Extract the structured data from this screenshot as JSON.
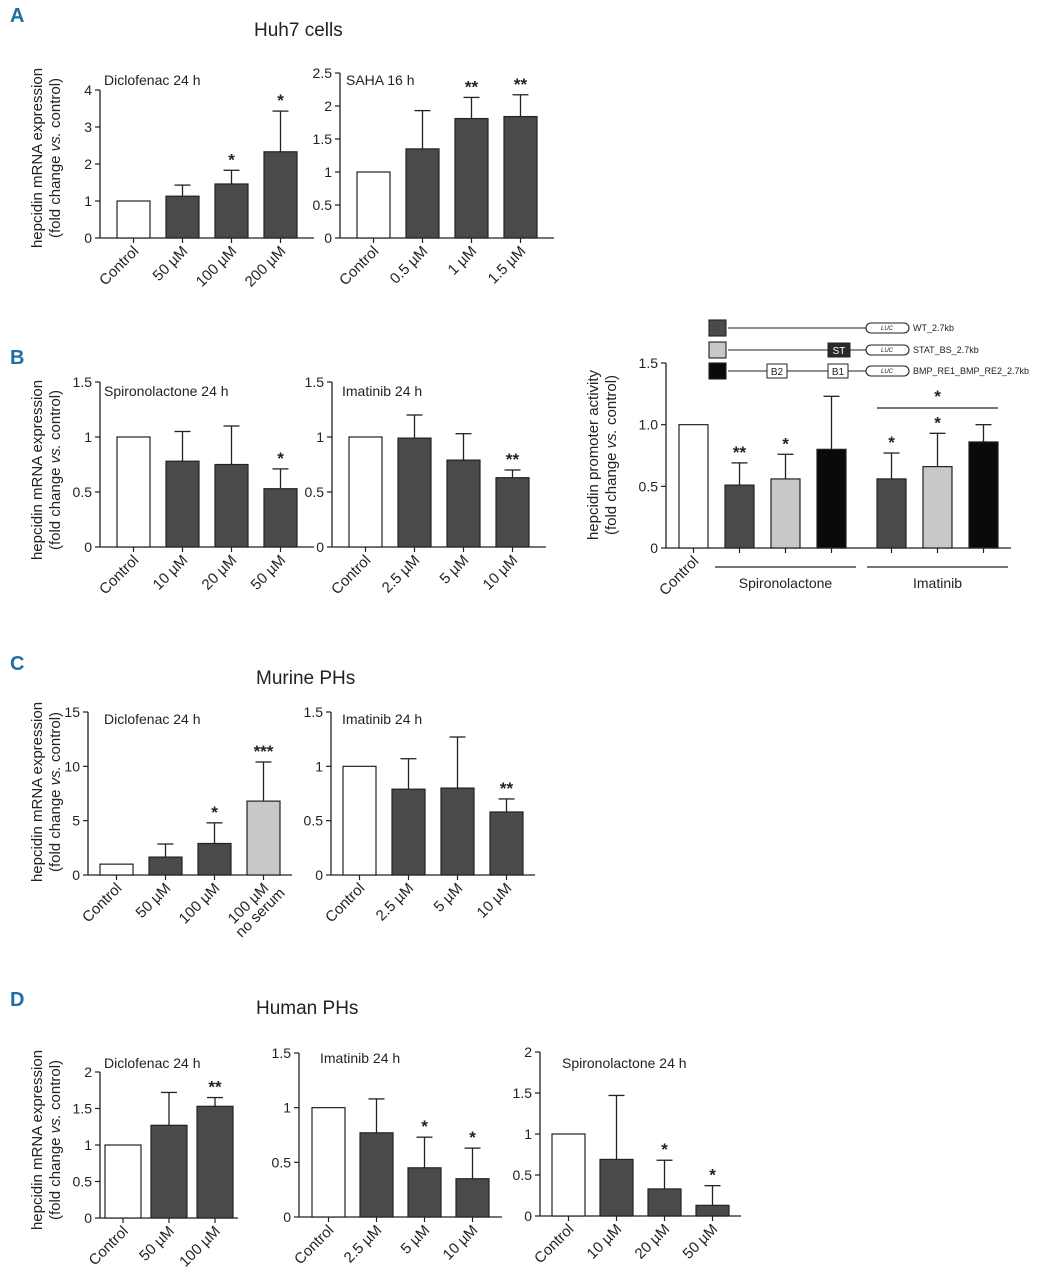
{
  "panels": {
    "A": {
      "label": "A",
      "title": "Huh7 cells"
    },
    "B": {
      "label": "B"
    },
    "C": {
      "label": "C",
      "title": "Murine PHs"
    },
    "D": {
      "label": "D",
      "title": "Human PHs"
    }
  },
  "ylabels": {
    "mrna_line1": "hepcidin mRNA expression",
    "mrna_line2_pre": "(fold change ",
    "mrna_line2_it": "vs.",
    "mrna_line2_post": " control)",
    "promoter_line1": "hepcidin promoter activity"
  },
  "colors": {
    "control": "#ffffff",
    "dark": "#4a4a4a",
    "light": "#c8c8c8",
    "black": "#0a0a0a",
    "axis": "#222222"
  },
  "legend": {
    "items": [
      {
        "color": "dark",
        "label": "WT_2.7kb"
      },
      {
        "color": "light",
        "label": "STAT_BS_2.7kb",
        "boxes": [
          "ST"
        ]
      },
      {
        "color": "black",
        "label": "BMP_RE1_BMP_RE2_2.7kb",
        "boxes": [
          "B2",
          "B1"
        ]
      }
    ],
    "luc": "LUC"
  },
  "chart_data": [
    {
      "id": "A1",
      "type": "bar",
      "title": "Diclofenac 24 h",
      "categories": [
        "Control",
        "50 µM",
        "100 µM",
        "200 µM"
      ],
      "values": [
        1.0,
        1.13,
        1.46,
        2.33
      ],
      "errors": [
        0,
        0.3,
        0.37,
        1.1
      ],
      "significance": [
        "",
        "",
        "*",
        "*"
      ],
      "colors": [
        "control",
        "dark",
        "dark",
        "dark"
      ],
      "ylim": [
        0,
        4
      ],
      "yticks": [
        "0",
        "1",
        "2",
        "3",
        "4"
      ]
    },
    {
      "id": "A2",
      "type": "bar",
      "title": "SAHA 16 h",
      "categories": [
        "Control",
        "0.5 µM",
        "1 µM",
        "1.5 µM"
      ],
      "values": [
        1.0,
        1.35,
        1.81,
        1.84
      ],
      "errors": [
        0,
        0.58,
        0.32,
        0.33
      ],
      "significance": [
        "",
        "",
        "**",
        "**"
      ],
      "colors": [
        "control",
        "dark",
        "dark",
        "dark"
      ],
      "ylim": [
        0,
        2.5
      ],
      "yticks": [
        "0",
        "0.5",
        "1",
        "1.5",
        "2",
        "2.5"
      ]
    },
    {
      "id": "B1",
      "type": "bar",
      "title": "Spironolactone 24 h",
      "categories": [
        "Control",
        "10 µM",
        "20 µM",
        "50 µM"
      ],
      "values": [
        1.0,
        0.78,
        0.75,
        0.53
      ],
      "errors": [
        0,
        0.27,
        0.35,
        0.18
      ],
      "significance": [
        "",
        "",
        "",
        "*"
      ],
      "colors": [
        "control",
        "dark",
        "dark",
        "dark"
      ],
      "ylim": [
        0,
        1.5
      ],
      "yticks": [
        "0",
        "0.5",
        "1",
        "1.5"
      ]
    },
    {
      "id": "B2",
      "type": "bar",
      "title": "Imatinib 24 h",
      "categories": [
        "Control",
        "2.5 µM",
        "5 µM",
        "10 µM"
      ],
      "values": [
        1.0,
        0.99,
        0.79,
        0.63
      ],
      "errors": [
        0,
        0.21,
        0.24,
        0.07
      ],
      "significance": [
        "",
        "",
        "",
        "**"
      ],
      "colors": [
        "control",
        "dark",
        "dark",
        "dark"
      ],
      "ylim": [
        0,
        1.5
      ],
      "yticks": [
        "0",
        "0.5",
        "1",
        "1.5"
      ]
    },
    {
      "id": "B3",
      "type": "bar",
      "title": "",
      "categories": [
        "Control",
        "",
        "",
        "",
        "",
        "",
        ""
      ],
      "values": [
        1.0,
        0.51,
        0.56,
        0.8,
        0.56,
        0.66,
        0.86
      ],
      "errors": [
        0,
        0.18,
        0.2,
        0.43,
        0.21,
        0.27,
        0.14
      ],
      "significance": [
        "",
        "**",
        "*",
        "",
        "*",
        "*",
        ""
      ],
      "colors": [
        "control",
        "dark",
        "light",
        "black",
        "dark",
        "light",
        "black"
      ],
      "ylim": [
        0,
        1.5
      ],
      "yticks": [
        "0",
        "0.5",
        "1.0",
        "1.5"
      ],
      "groups": [
        {
          "label": "Spironolactone",
          "from": 1,
          "to": 3
        },
        {
          "label": "Imatinib",
          "from": 4,
          "to": 6
        }
      ],
      "bracket": {
        "label": "*",
        "from": 4,
        "to": 6
      }
    },
    {
      "id": "C1",
      "type": "bar",
      "title": "Diclofenac 24 h",
      "categories": [
        "Control",
        "50 µM",
        "100 µM",
        "100 µM|no serum"
      ],
      "values": [
        1.0,
        1.65,
        2.9,
        6.8
      ],
      "errors": [
        0,
        1.2,
        1.9,
        3.6
      ],
      "significance": [
        "",
        "",
        "*",
        "***"
      ],
      "colors": [
        "control",
        "dark",
        "dark",
        "light"
      ],
      "ylim": [
        0,
        15
      ],
      "yticks": [
        "0",
        "5",
        "10",
        "15"
      ]
    },
    {
      "id": "C2",
      "type": "bar",
      "title": "Imatinib 24 h",
      "categories": [
        "Control",
        "2.5 µM",
        "5 µM",
        "10 µM"
      ],
      "values": [
        1.0,
        0.79,
        0.8,
        0.58
      ],
      "errors": [
        0,
        0.28,
        0.47,
        0.12
      ],
      "significance": [
        "",
        "",
        "",
        "**"
      ],
      "colors": [
        "control",
        "dark",
        "dark",
        "dark"
      ],
      "ylim": [
        0,
        1.5
      ],
      "yticks": [
        "0",
        "0.5",
        "1",
        "1.5"
      ]
    },
    {
      "id": "D1",
      "type": "bar",
      "title": "Diclofenac 24 h",
      "categories": [
        "Control",
        "50 µM",
        "100 µM"
      ],
      "values": [
        1.0,
        1.27,
        1.53
      ],
      "errors": [
        0,
        0.45,
        0.12
      ],
      "significance": [
        "",
        "",
        "**"
      ],
      "colors": [
        "control",
        "dark",
        "dark"
      ],
      "ylim": [
        0,
        2
      ],
      "yticks": [
        "0",
        "0.5",
        "1",
        "1.5",
        "2"
      ]
    },
    {
      "id": "D2",
      "type": "bar",
      "title": "Imatinib 24 h",
      "categories": [
        "Control",
        "2.5 µM",
        "5 µM",
        "10 µM"
      ],
      "values": [
        1.0,
        0.77,
        0.45,
        0.35
      ],
      "errors": [
        0,
        0.31,
        0.28,
        0.28
      ],
      "significance": [
        "",
        "",
        "*",
        "*"
      ],
      "colors": [
        "control",
        "dark",
        "dark",
        "dark"
      ],
      "ylim": [
        0,
        1.5
      ],
      "yticks": [
        "0",
        "0.5",
        "1",
        "1.5"
      ]
    },
    {
      "id": "D3",
      "type": "bar",
      "title": "Spironolactone 24 h",
      "categories": [
        "Control",
        "10 µM",
        "20 µM",
        "50 µM"
      ],
      "values": [
        1.0,
        0.69,
        0.33,
        0.13
      ],
      "errors": [
        0,
        0.78,
        0.35,
        0.24
      ],
      "significance": [
        "",
        "",
        "*",
        "*"
      ],
      "colors": [
        "control",
        "dark",
        "dark",
        "dark"
      ],
      "ylim": [
        0,
        2
      ],
      "yticks": [
        "0",
        "0.5",
        "1",
        "1.5",
        "2"
      ]
    }
  ]
}
